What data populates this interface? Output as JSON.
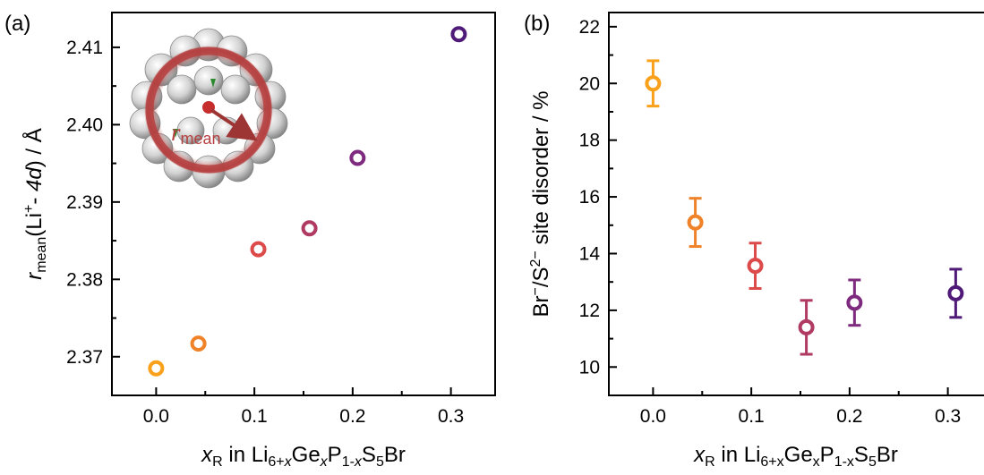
{
  "colors": {
    "x000": "#f9a11b",
    "x004": "#f0832a",
    "x010": "#dc4a4a",
    "x016": "#b03a62",
    "x021": "#7e2a7e",
    "x031": "#4f1a78",
    "sphere_ring": "#b54040",
    "arrow": "#9e3535"
  },
  "chart_data": [
    {
      "panel": "(a)",
      "type": "scatter",
      "xlabel": {
        "var": "x",
        "var_sub": "R",
        "mid": " in Li",
        "sub1": "6+",
        "sub1_var": "x",
        "el2": "Ge",
        "sub2_var": "x",
        "el3": "P",
        "sub3": "1-",
        "sub3_var": "x",
        "el4": "S",
        "sub4": "5",
        "el5": "Br"
      },
      "ylabel": {
        "var": "r",
        "var_sub": "mean",
        "open": "(Li",
        "sup": "+",
        "dash": "- ",
        "site": "4d",
        "close": ") / Å"
      },
      "xlim": [
        -0.045,
        0.345
      ],
      "ylim": [
        2.365,
        2.4145
      ],
      "xticks": [
        "0.0",
        "0.1",
        "0.2",
        "0.3"
      ],
      "yticks": [
        "2.37",
        "2.38",
        "2.39",
        "2.40",
        "2.41"
      ],
      "inset_label": {
        "var": "r",
        "sub": "mean"
      },
      "points": [
        {
          "x": 0.0,
          "y": 2.3685,
          "color": "#f9a11b"
        },
        {
          "x": 0.043,
          "y": 2.3717,
          "color": "#f0832a"
        },
        {
          "x": 0.104,
          "y": 2.3839,
          "color": "#dc4a4a"
        },
        {
          "x": 0.156,
          "y": 2.3866,
          "color": "#b03a62"
        },
        {
          "x": 0.205,
          "y": 2.3957,
          "color": "#7e2a7e"
        },
        {
          "x": 0.308,
          "y": 2.4117,
          "color": "#4f1a78"
        }
      ]
    },
    {
      "panel": "(b)",
      "type": "scatter",
      "xlabel": {
        "var": "x",
        "var_sub": "R",
        "mid": " in Li",
        "sub1": "6+x",
        "el2": "Ge",
        "sub2": "x",
        "el3": "P",
        "sub3": "1-x",
        "el4": "S",
        "sub4": "5",
        "el5": "Br"
      },
      "ylabel": {
        "a": "Br",
        "a_sup": "−",
        "b": "/S",
        "b_sup": "2−",
        "c": " site disorder / %"
      },
      "xlim": [
        -0.045,
        0.345
      ],
      "ylim": [
        9.0,
        22.5
      ],
      "xticks": [
        "0.0",
        "0.1",
        "0.2",
        "0.3"
      ],
      "yticks": [
        "10",
        "12",
        "14",
        "16",
        "18",
        "20",
        "22"
      ],
      "points": [
        {
          "x": 0.0,
          "y": 20.0,
          "err": 0.8,
          "color": "#f9a11b"
        },
        {
          "x": 0.043,
          "y": 15.1,
          "err": 0.85,
          "color": "#f0832a"
        },
        {
          "x": 0.104,
          "y": 13.57,
          "err": 0.8,
          "color": "#dc4a4a"
        },
        {
          "x": 0.156,
          "y": 11.4,
          "err": 0.95,
          "color": "#b03a62"
        },
        {
          "x": 0.205,
          "y": 12.27,
          "err": 0.8,
          "color": "#7e2a7e"
        },
        {
          "x": 0.308,
          "y": 12.6,
          "err": 0.85,
          "color": "#4f1a78"
        }
      ]
    }
  ]
}
